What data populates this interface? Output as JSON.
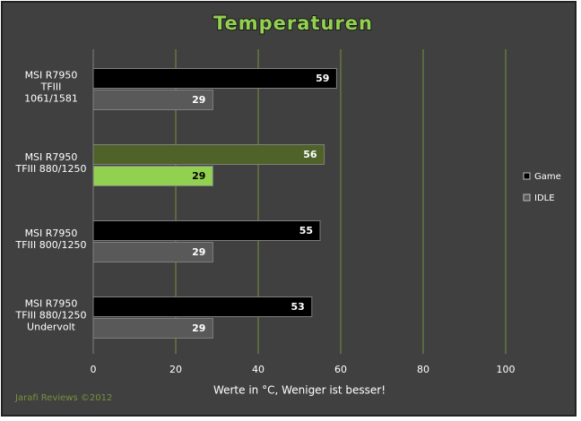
{
  "chart_data": {
    "type": "hbar",
    "title": "Temperaturen",
    "categories": [
      [
        "MSI R7950",
        "TFIII",
        "1061/1581"
      ],
      [
        "MSI R7950",
        "TFIII 880/1250"
      ],
      [
        "MSI R7950",
        "TFIII 800/1250"
      ],
      [
        "MSI R7950",
        "TFIII 880/1250",
        "Undervolt"
      ]
    ],
    "series": [
      {
        "name": "Game",
        "color": "#000000",
        "colors": [
          "#000000",
          "#4f6228",
          "#000000",
          "#000000"
        ],
        "values": [
          59,
          56,
          55,
          53
        ]
      },
      {
        "name": "IDLE",
        "color": "#595959",
        "colors": [
          "#595959",
          "#92d050",
          "#595959",
          "#595959"
        ],
        "values": [
          29,
          29,
          29,
          29
        ]
      }
    ],
    "xlim": [
      0,
      100
    ],
    "xticks": [
      0,
      20,
      40,
      60,
      80,
      100
    ],
    "grid": true,
    "xlabel": "Werte in  °C, Weniger ist besser!",
    "footer": "Jarafi Reviews  ©2012",
    "legend": "right"
  }
}
